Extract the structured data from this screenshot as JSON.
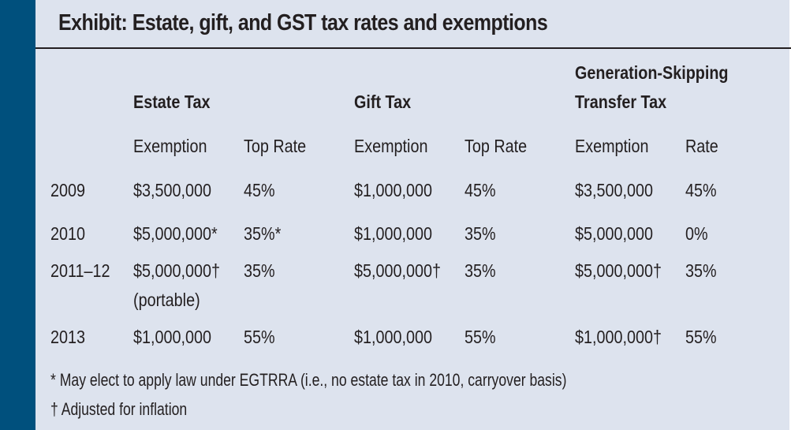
{
  "title": "Exhibit: Estate, gift, and GST tax rates and exemptions",
  "colors": {
    "sidebar": "#00507d",
    "background": "#dde3ee",
    "text": "#231f20"
  },
  "groups": {
    "estate": "Estate Tax",
    "gift": "Gift Tax",
    "gst_line1": "Generation-Skipping",
    "gst_line2": "Transfer Tax"
  },
  "subheaders": {
    "estate_exemption": "Exemption",
    "estate_rate": "Top Rate",
    "gift_exemption": "Exemption",
    "gift_rate": "Top Rate",
    "gst_exemption": "Exemption",
    "gst_rate": "Rate"
  },
  "rows": [
    {
      "year": "2009",
      "estate_exemption": "$3,500,000",
      "estate_note": "",
      "estate_rate": "45%",
      "gift_exemption": "$1,000,000",
      "gift_rate": "45%",
      "gst_exemption": "$3,500,000",
      "gst_rate": "45%"
    },
    {
      "year": "2010",
      "estate_exemption": "$5,000,000*",
      "estate_note": "",
      "estate_rate": "35%*",
      "gift_exemption": "$1,000,000",
      "gift_rate": "35%",
      "gst_exemption": "$5,000,000",
      "gst_rate": "0%"
    },
    {
      "year": "2011–12",
      "estate_exemption": "$5,000,000†",
      "estate_note": "(portable)",
      "estate_rate": "35%",
      "gift_exemption": "$5,000,000†",
      "gift_rate": "35%",
      "gst_exemption": "$5,000,000†",
      "gst_rate": "35%"
    },
    {
      "year": "2013",
      "estate_exemption": "$1,000,000",
      "estate_note": "",
      "estate_rate": "55%",
      "gift_exemption": "$1,000,000",
      "gift_rate": "55%",
      "gst_exemption": "$1,000,000†",
      "gst_rate": "55%"
    }
  ],
  "footnotes": [
    "* May elect to apply law under EGTRRA (i.e., no estate tax in 2010, carryover basis)",
    "† Adjusted for inflation"
  ]
}
